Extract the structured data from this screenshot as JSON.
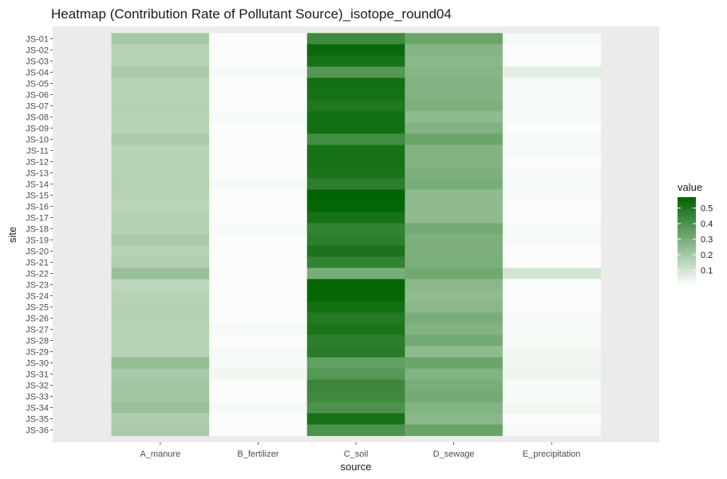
{
  "chart_data": {
    "type": "heatmap",
    "title": "Heatmap (Contribution Rate of Pollutant Source)_isotope_round04",
    "xlabel": "source",
    "ylabel": "site",
    "x_categories": [
      "A_manure",
      "B_fertilizer",
      "C_soil",
      "D_sewage",
      "E_precipitation"
    ],
    "y_categories": [
      "JS-01",
      "JS-02",
      "JS-03",
      "JS-04",
      "JS-05",
      "JS-06",
      "JS-07",
      "JS-08",
      "JS-09",
      "JS-10",
      "JS-11",
      "JS-12",
      "JS-13",
      "JS-14",
      "JS-15",
      "JS-16",
      "JS-17",
      "JS-18",
      "JS-19",
      "JS-20",
      "JS-21",
      "JS-22",
      "JS-23",
      "JS-24",
      "JS-25",
      "JS-26",
      "JS-27",
      "JS-28",
      "JS-29",
      "JS-30",
      "JS-31",
      "JS-32",
      "JS-33",
      "JS-34",
      "JS-35",
      "JS-36"
    ],
    "values": [
      [
        0.2,
        0.01,
        0.43,
        0.33,
        0.02
      ],
      [
        0.16,
        0.01,
        0.55,
        0.27,
        0.01
      ],
      [
        0.16,
        0.01,
        0.52,
        0.26,
        0.01
      ],
      [
        0.19,
        0.02,
        0.38,
        0.27,
        0.06
      ],
      [
        0.16,
        0.01,
        0.53,
        0.28,
        0.02
      ],
      [
        0.16,
        0.01,
        0.52,
        0.28,
        0.02
      ],
      [
        0.17,
        0.01,
        0.5,
        0.29,
        0.02
      ],
      [
        0.16,
        0.02,
        0.53,
        0.25,
        0.02
      ],
      [
        0.16,
        0.01,
        0.53,
        0.28,
        0.01
      ],
      [
        0.19,
        0.01,
        0.42,
        0.33,
        0.02
      ],
      [
        0.16,
        0.01,
        0.52,
        0.28,
        0.02
      ],
      [
        0.16,
        0.01,
        0.52,
        0.28,
        0.01
      ],
      [
        0.16,
        0.01,
        0.51,
        0.29,
        0.02
      ],
      [
        0.17,
        0.02,
        0.47,
        0.3,
        0.02
      ],
      [
        0.16,
        0.01,
        0.57,
        0.25,
        0.02
      ],
      [
        0.15,
        0.01,
        0.56,
        0.25,
        0.01
      ],
      [
        0.17,
        0.01,
        0.52,
        0.25,
        0.01
      ],
      [
        0.17,
        0.02,
        0.46,
        0.31,
        0.02
      ],
      [
        0.19,
        0.01,
        0.47,
        0.29,
        0.02
      ],
      [
        0.16,
        0.01,
        0.51,
        0.29,
        0.01
      ],
      [
        0.18,
        0.01,
        0.46,
        0.3,
        0.01
      ],
      [
        0.23,
        0.01,
        0.3,
        0.32,
        0.1
      ],
      [
        0.15,
        0.01,
        0.56,
        0.26,
        0.01
      ],
      [
        0.16,
        0.01,
        0.56,
        0.25,
        0.01
      ],
      [
        0.17,
        0.01,
        0.53,
        0.26,
        0.01
      ],
      [
        0.17,
        0.01,
        0.49,
        0.3,
        0.02
      ],
      [
        0.16,
        0.02,
        0.51,
        0.28,
        0.02
      ],
      [
        0.16,
        0.01,
        0.47,
        0.31,
        0.02
      ],
      [
        0.16,
        0.02,
        0.48,
        0.25,
        0.03
      ],
      [
        0.24,
        0.02,
        0.35,
        0.33,
        0.03
      ],
      [
        0.19,
        0.03,
        0.38,
        0.28,
        0.04
      ],
      [
        0.21,
        0.01,
        0.44,
        0.3,
        0.02
      ],
      [
        0.21,
        0.01,
        0.43,
        0.31,
        0.02
      ],
      [
        0.23,
        0.02,
        0.4,
        0.28,
        0.03
      ],
      [
        0.18,
        0.01,
        0.52,
        0.26,
        0.01
      ],
      [
        0.19,
        0.01,
        0.4,
        0.34,
        0.02
      ]
    ],
    "legend": {
      "title": "value",
      "ticks": [
        0.1,
        0.2,
        0.3,
        0.4,
        0.5
      ],
      "range": [
        0.0,
        0.57
      ],
      "low_color": "#ffffff",
      "high_color": "#006400",
      "placement": "right"
    },
    "grid": true,
    "panel_background": "#ebebeb"
  }
}
